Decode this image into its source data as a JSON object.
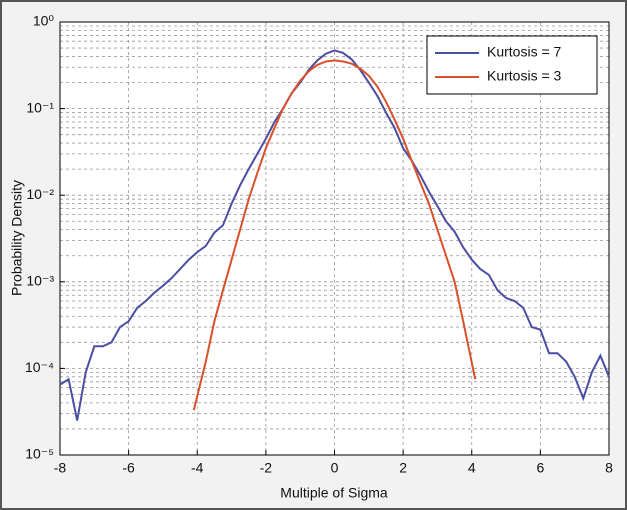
{
  "chart_data": {
    "type": "line",
    "xlabel": "Multiple of Sigma",
    "ylabel": "Probability Density",
    "yscale": "log",
    "grid": true,
    "legend": "upper right",
    "xlim": [
      -8,
      8
    ],
    "xticks": [
      -8,
      -6,
      -4,
      -2,
      0,
      2,
      4,
      6,
      8
    ],
    "ylim": [
      1e-05,
      1
    ],
    "yticks": [
      {
        "value": 1e-05,
        "label": "10⁻⁵"
      },
      {
        "value": 0.0001,
        "label": "10⁻⁴"
      },
      {
        "value": 0.001,
        "label": "10⁻³"
      },
      {
        "value": 0.01,
        "label": "10⁻²"
      },
      {
        "value": 0.1,
        "label": "10⁻¹"
      },
      {
        "value": 1,
        "label": "10⁰"
      }
    ],
    "series": [
      {
        "name": "Kurtosis = 7",
        "color": "#4a4fa3",
        "x": [
          -8,
          -7.75,
          -7.5,
          -7.25,
          -7,
          -6.75,
          -6.5,
          -6.25,
          -6,
          -5.75,
          -5.5,
          -5.25,
          -5,
          -4.75,
          -4.5,
          -4.25,
          -4,
          -3.75,
          -3.5,
          -3.25,
          -3,
          -2.75,
          -2.5,
          -2.25,
          -2,
          -1.75,
          -1.5,
          -1.25,
          -1,
          -0.75,
          -0.5,
          -0.25,
          0,
          0.25,
          0.5,
          0.75,
          1,
          1.25,
          1.5,
          1.75,
          2,
          2.25,
          2.5,
          2.75,
          3,
          3.25,
          3.5,
          3.75,
          4,
          4.25,
          4.5,
          4.75,
          5,
          5.25,
          5.5,
          5.75,
          6,
          6.25,
          6.5,
          6.75,
          7,
          7.25,
          7.5,
          7.75,
          8
        ],
        "values": [
          6.5e-05,
          7.5e-05,
          2.5e-05,
          9e-05,
          0.00018,
          0.00018,
          0.0002,
          0.0003,
          0.00035,
          0.0005,
          0.0006,
          0.00075,
          0.0009,
          0.0011,
          0.0014,
          0.0018,
          0.0022,
          0.0026,
          0.0037,
          0.0045,
          0.008,
          0.013,
          0.02,
          0.03,
          0.045,
          0.07,
          0.1,
          0.15,
          0.2,
          0.28,
          0.36,
          0.43,
          0.47,
          0.44,
          0.37,
          0.28,
          0.2,
          0.14,
          0.09,
          0.06,
          0.035,
          0.025,
          0.017,
          0.011,
          0.0075,
          0.005,
          0.0038,
          0.0025,
          0.0018,
          0.0014,
          0.0012,
          0.0008,
          0.00065,
          0.0006,
          0.0005,
          0.0003,
          0.00028,
          0.00015,
          0.00015,
          0.00012,
          8e-05,
          4.5e-05,
          9e-05,
          0.00014,
          8e-05
        ]
      },
      {
        "name": "Kurtosis = 3",
        "color": "#d9502a",
        "x": [
          -4.1,
          -3.75,
          -3.5,
          -3.25,
          -3,
          -2.75,
          -2.5,
          -2.25,
          -2,
          -1.75,
          -1.5,
          -1.25,
          -1,
          -0.75,
          -0.5,
          -0.25,
          0,
          0.25,
          0.5,
          0.75,
          1,
          1.25,
          1.5,
          1.75,
          2,
          2.25,
          2.5,
          2.75,
          3,
          3.25,
          3.5,
          3.75,
          4.1
        ],
        "values": [
          3.3e-05,
          0.00012,
          0.00035,
          0.0008,
          0.0018,
          0.004,
          0.009,
          0.018,
          0.035,
          0.06,
          0.1,
          0.15,
          0.21,
          0.27,
          0.32,
          0.35,
          0.36,
          0.35,
          0.33,
          0.29,
          0.24,
          0.18,
          0.12,
          0.075,
          0.045,
          0.025,
          0.014,
          0.008,
          0.004,
          0.002,
          0.001,
          0.00035,
          7.5e-05
        ]
      }
    ]
  }
}
